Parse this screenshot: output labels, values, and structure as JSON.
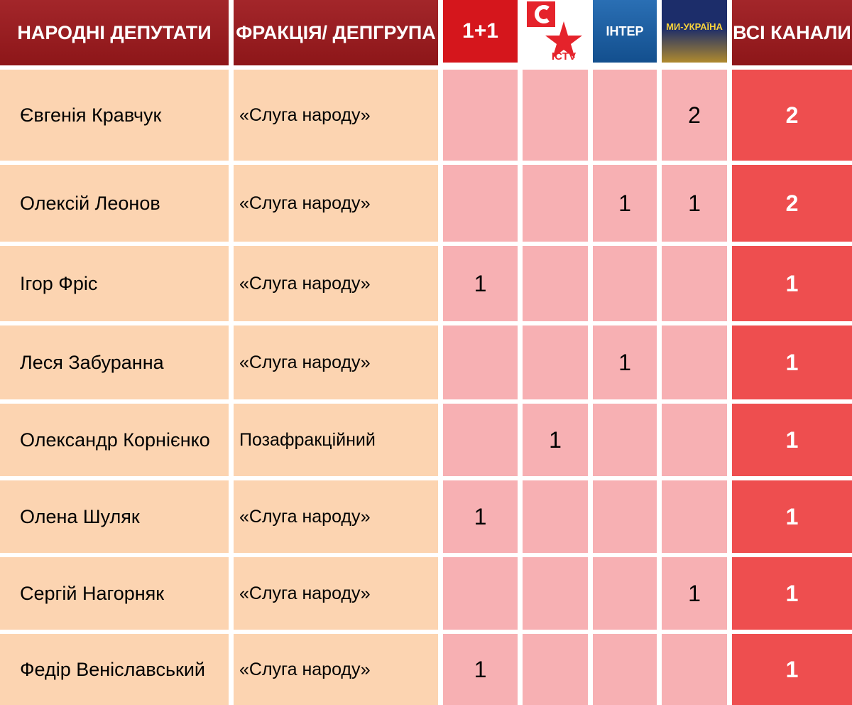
{
  "header": {
    "deputies": "НАРОДНІ ДЕПУТАТИ",
    "faction": "ФРАКЦІЯ/ ДЕПГРУПА",
    "channels": [
      "1+1",
      "ICTV",
      "ІНТЕР",
      "МИ-УКРАЇНА"
    ],
    "total": "ВСІ КАНАЛИ"
  },
  "table": {
    "rows": [
      [
        "Євгенія Кравчук",
        "«Слуга народу»",
        null,
        null,
        null,
        2,
        2
      ],
      [
        "Олексій Леонов",
        "«Слуга народу»",
        null,
        null,
        1,
        1,
        2
      ],
      [
        "Ігор Фріс",
        "«Слуга народу»",
        1,
        null,
        null,
        null,
        1
      ],
      [
        "Леся Забуранна",
        "«Слуга народу»",
        null,
        null,
        1,
        null,
        1
      ],
      [
        "Олександр Корнієнко",
        "Позафракційний",
        null,
        1,
        null,
        null,
        1
      ],
      [
        "Олена Шуляк",
        "«Слуга народу»",
        1,
        null,
        null,
        null,
        1
      ],
      [
        "Сергій Нагорняк",
        "«Слуга народу»",
        null,
        null,
        null,
        1,
        1
      ],
      [
        "Федір Веніславський",
        "«Слуга народу»",
        1,
        null,
        null,
        null,
        1
      ]
    ]
  }
}
